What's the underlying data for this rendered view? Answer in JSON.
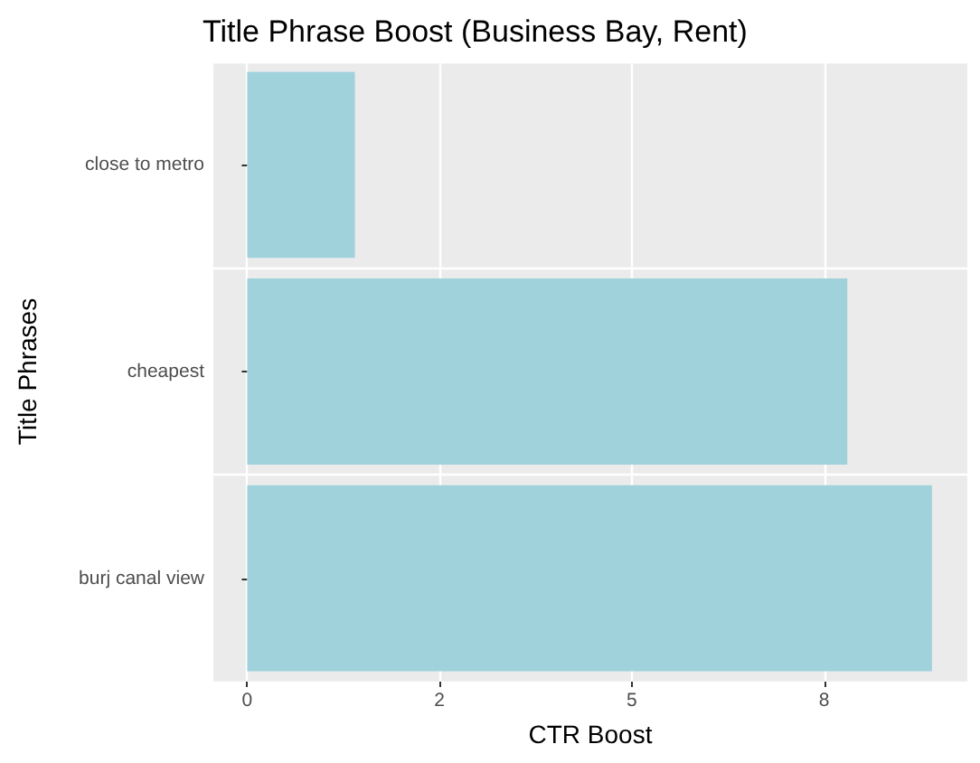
{
  "chart_data": {
    "type": "bar",
    "orientation": "horizontal",
    "title": "Title Phrase Boost (Business Bay, Rent)",
    "xlabel": "CTR Boost",
    "ylabel": "Title Phrases",
    "categories": [
      "close to metro",
      "cheapest",
      "burj canal view"
    ],
    "values": [
      1.4,
      7.8,
      8.9
    ],
    "color": "#a0d2dc",
    "xlim": [
      -0.44,
      9.36
    ],
    "xticks": [
      0,
      {
        "value": 2.5,
        "label": "2"
      },
      5,
      {
        "value": 7.5,
        "label": "8"
      }
    ],
    "grid": true
  }
}
